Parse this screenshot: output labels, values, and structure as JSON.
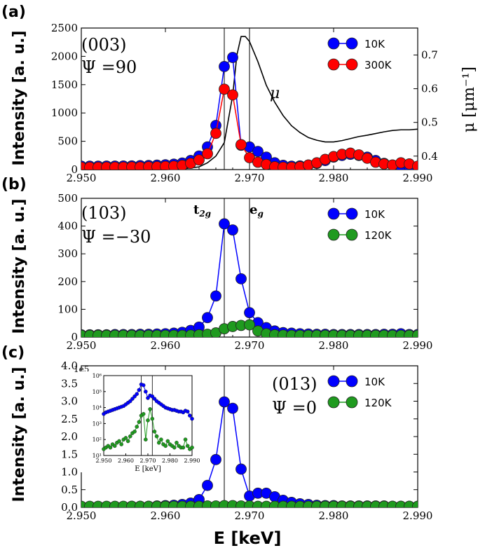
{
  "figure": {
    "xlabel": "E [keV]",
    "inset_xlabel": "E [keV]",
    "t2g": "t2g",
    "eg": "eg"
  },
  "chart_data": [
    {
      "type": "line",
      "panel_label": "(a)",
      "ylabel": "Intensity [a. u.]",
      "ylabel2": "μ [μm⁻¹]",
      "annotation_line1": "(003)",
      "annotation_line2": "Ψ =90",
      "mu_label": "μ",
      "xlim": [
        2.95,
        2.99
      ],
      "ylim": [
        0,
        2500
      ],
      "xticks": [
        "2.950",
        "2.960",
        "2.970",
        "2.980",
        "2.990"
      ],
      "yticks": [
        "0",
        "500",
        "1000",
        "1500",
        "2000",
        "2500"
      ],
      "y2lim": [
        0.36,
        0.78
      ],
      "y2ticks": [
        "0.4",
        "0.5",
        "0.6",
        "0.7"
      ],
      "vlines": [
        2.967,
        2.97
      ],
      "legend_position": "top-right",
      "series": [
        {
          "name": "10K",
          "color": "#0000ff",
          "connect": "peak",
          "x": [
            2.95,
            2.951,
            2.952,
            2.953,
            2.954,
            2.955,
            2.956,
            2.957,
            2.958,
            2.959,
            2.96,
            2.961,
            2.962,
            2.963,
            2.964,
            2.965,
            2.966,
            2.967,
            2.968,
            2.969,
            2.97,
            2.971,
            2.972,
            2.973,
            2.974,
            2.975,
            2.976,
            2.977,
            2.978,
            2.979,
            2.98,
            2.981,
            2.982,
            2.983,
            2.984,
            2.985,
            2.986,
            2.987,
            2.988,
            2.989,
            2.99
          ],
          "y": [
            60,
            60,
            60,
            62,
            62,
            63,
            65,
            70,
            72,
            78,
            85,
            95,
            115,
            160,
            240,
            400,
            780,
            1820,
            1980,
            430,
            400,
            320,
            220,
            120,
            75,
            60,
            65,
            80,
            110,
            160,
            220,
            250,
            270,
            250,
            220,
            160,
            110,
            80,
            60,
            55,
            55
          ]
        },
        {
          "name": "300K",
          "color": "#ff0000",
          "connect": "peak",
          "x": [
            2.95,
            2.951,
            2.952,
            2.953,
            2.954,
            2.955,
            2.956,
            2.957,
            2.958,
            2.959,
            2.96,
            2.961,
            2.962,
            2.963,
            2.964,
            2.965,
            2.966,
            2.967,
            2.968,
            2.969,
            2.97,
            2.971,
            2.972,
            2.973,
            2.974,
            2.975,
            2.976,
            2.977,
            2.978,
            2.979,
            2.98,
            2.981,
            2.982,
            2.983,
            2.984,
            2.985,
            2.986,
            2.987,
            2.988,
            2.989,
            2.99
          ],
          "y": [
            40,
            40,
            40,
            42,
            42,
            42,
            45,
            45,
            48,
            50,
            55,
            60,
            75,
            110,
            170,
            280,
            640,
            1420,
            1320,
            440,
            210,
            130,
            90,
            50,
            40,
            40,
            50,
            80,
            120,
            180,
            230,
            270,
            290,
            260,
            200,
            130,
            100,
            80,
            120,
            100,
            60
          ]
        }
      ],
      "mu_curve": {
        "x": [
          2.95,
          2.956,
          2.96,
          2.962,
          2.964,
          2.965,
          2.966,
          2.967,
          2.968,
          2.9685,
          2.969,
          2.9695,
          2.97,
          2.971,
          2.972,
          2.973,
          2.974,
          2.975,
          2.976,
          2.977,
          2.978,
          2.979,
          2.98,
          2.981,
          2.982,
          2.983,
          2.984,
          2.985,
          2.986,
          2.987,
          2.988,
          2.989,
          2.99
        ],
        "y": [
          0.36,
          0.36,
          0.36,
          0.362,
          0.368,
          0.38,
          0.4,
          0.44,
          0.58,
          0.7,
          0.755,
          0.755,
          0.74,
          0.68,
          0.61,
          0.56,
          0.52,
          0.49,
          0.47,
          0.455,
          0.447,
          0.442,
          0.442,
          0.446,
          0.452,
          0.458,
          0.462,
          0.467,
          0.472,
          0.476,
          0.478,
          0.478,
          0.48
        ]
      }
    },
    {
      "type": "line",
      "panel_label": "(b)",
      "ylabel": "Intensity [a. u.]",
      "annotation_line1": "(103)",
      "annotation_line2": "Ψ =−30",
      "xlim": [
        2.95,
        2.99
      ],
      "ylim": [
        0,
        500
      ],
      "xticks": [
        "2.950",
        "2.960",
        "2.970",
        "2.980",
        "2.990"
      ],
      "yticks": [
        "0",
        "100",
        "200",
        "300",
        "400",
        "500"
      ],
      "vlines": [
        2.967,
        2.97
      ],
      "legend_position": "top-right",
      "series": [
        {
          "name": "10K",
          "color": "#0000ff",
          "connect": "peak",
          "x": [
            2.95,
            2.951,
            2.952,
            2.953,
            2.954,
            2.955,
            2.956,
            2.957,
            2.958,
            2.959,
            2.96,
            2.961,
            2.962,
            2.963,
            2.964,
            2.965,
            2.966,
            2.967,
            2.968,
            2.969,
            2.97,
            2.971,
            2.972,
            2.973,
            2.974,
            2.975,
            2.976,
            2.977,
            2.978,
            2.979,
            2.98,
            2.981,
            2.982,
            2.983,
            2.984,
            2.985,
            2.986,
            2.987,
            2.988,
            2.989,
            2.99
          ],
          "y": [
            8,
            8,
            8,
            8,
            9,
            9,
            9,
            10,
            10,
            11,
            12,
            14,
            17,
            24,
            36,
            70,
            148,
            408,
            386,
            210,
            88,
            52,
            34,
            22,
            16,
            14,
            12,
            11,
            10,
            10,
            9,
            9,
            9,
            9,
            9,
            9,
            10,
            10,
            12,
            9,
            9
          ]
        },
        {
          "name": "120K",
          "color": "#1f9a1f",
          "connect": "none",
          "x": [
            2.95,
            2.951,
            2.952,
            2.953,
            2.954,
            2.955,
            2.956,
            2.957,
            2.958,
            2.959,
            2.96,
            2.961,
            2.962,
            2.963,
            2.964,
            2.965,
            2.966,
            2.967,
            2.968,
            2.969,
            2.97,
            2.971,
            2.972,
            2.973,
            2.974,
            2.975,
            2.976,
            2.977,
            2.978,
            2.979,
            2.98,
            2.981,
            2.982,
            2.983,
            2.984,
            2.985,
            2.986,
            2.987,
            2.988,
            2.989,
            2.99
          ],
          "y": [
            6,
            6,
            6,
            6,
            6,
            6,
            6,
            6,
            6,
            6,
            6,
            6,
            6,
            7,
            8,
            10,
            15,
            30,
            38,
            42,
            44,
            22,
            12,
            8,
            7,
            6,
            6,
            6,
            6,
            6,
            6,
            6,
            6,
            6,
            6,
            6,
            6,
            6,
            6,
            6,
            6
          ]
        }
      ]
    },
    {
      "type": "line",
      "panel_label": "(c)",
      "ylabel": "Intensity [a. u.]",
      "annotation_line1": "(013)",
      "annotation_line2": "Ψ =0",
      "scale_label": "1e5",
      "xlim": [
        2.95,
        2.99
      ],
      "ylim": [
        0,
        4.0
      ],
      "xticks": [
        "2.950",
        "2.960",
        "2.970",
        "2.980",
        "2.990"
      ],
      "yticks": [
        "0.0",
        "0.5",
        "1.0",
        "1.5",
        "2.0",
        "2.5",
        "3.0",
        "3.5",
        "4.0"
      ],
      "vlines": [
        2.967,
        2.97
      ],
      "legend_position": "top-right",
      "series": [
        {
          "name": "10K",
          "color": "#0000ff",
          "connect": "peak",
          "x": [
            2.95,
            2.951,
            2.952,
            2.953,
            2.954,
            2.955,
            2.956,
            2.957,
            2.958,
            2.959,
            2.96,
            2.961,
            2.962,
            2.963,
            2.964,
            2.965,
            2.966,
            2.967,
            2.968,
            2.969,
            2.97,
            2.971,
            2.972,
            2.973,
            2.974,
            2.975,
            2.976,
            2.977,
            2.978,
            2.979,
            2.98,
            2.981,
            2.982,
            2.983,
            2.984,
            2.985,
            2.986,
            2.987,
            2.988,
            2.989,
            2.99
          ],
          "y": [
            0.02,
            0.02,
            0.02,
            0.02,
            0.02,
            0.02,
            0.03,
            0.03,
            0.03,
            0.04,
            0.05,
            0.06,
            0.08,
            0.12,
            0.22,
            0.62,
            1.35,
            2.98,
            2.8,
            1.08,
            0.32,
            0.4,
            0.4,
            0.3,
            0.2,
            0.14,
            0.1,
            0.08,
            0.06,
            0.05,
            0.05,
            0.04,
            0.04,
            0.04,
            0.04,
            0.04,
            0.04,
            0.03,
            0.03,
            0.03,
            0.03
          ]
        },
        {
          "name": "120K",
          "color": "#1f9a1f",
          "connect": "none",
          "x": [
            2.95,
            2.951,
            2.952,
            2.953,
            2.954,
            2.955,
            2.956,
            2.957,
            2.958,
            2.959,
            2.96,
            2.961,
            2.962,
            2.963,
            2.964,
            2.965,
            2.966,
            2.967,
            2.968,
            2.969,
            2.97,
            2.971,
            2.972,
            2.973,
            2.974,
            2.975,
            2.976,
            2.977,
            2.978,
            2.979,
            2.98,
            2.981,
            2.982,
            2.983,
            2.984,
            2.985,
            2.986,
            2.987,
            2.988,
            2.989,
            2.99
          ],
          "y": [
            0.03,
            0.03,
            0.03,
            0.03,
            0.03,
            0.03,
            0.03,
            0.03,
            0.03,
            0.03,
            0.03,
            0.03,
            0.03,
            0.03,
            0.03,
            0.04,
            0.04,
            0.05,
            0.05,
            0.04,
            0.04,
            0.03,
            0.03,
            0.03,
            0.03,
            0.03,
            0.03,
            0.03,
            0.03,
            0.03,
            0.03,
            0.03,
            0.03,
            0.03,
            0.03,
            0.03,
            0.03,
            0.03,
            0.03,
            0.03,
            0.03
          ]
        }
      ],
      "inset": {
        "xlabel": "E [keV]",
        "xlim": [
          2.95,
          2.99
        ],
        "ylim_log10": [
          1,
          6
        ],
        "xticks": [
          "2.950",
          "2.960",
          "2.970",
          "2.980",
          "2.990"
        ],
        "yticks": [
          "10¹",
          "10²",
          "10³",
          "10⁴",
          "10⁵",
          "10⁶"
        ],
        "vlines": [
          2.967,
          2.972
        ],
        "series": [
          {
            "name": "10K",
            "color": "#0000ff",
            "x": [
              2.95,
              2.951,
              2.952,
              2.953,
              2.954,
              2.955,
              2.956,
              2.957,
              2.958,
              2.959,
              2.96,
              2.961,
              2.962,
              2.963,
              2.964,
              2.965,
              2.966,
              2.967,
              2.968,
              2.969,
              2.97,
              2.971,
              2.972,
              2.973,
              2.974,
              2.975,
              2.976,
              2.977,
              2.978,
              2.979,
              2.98,
              2.981,
              2.982,
              2.983,
              2.984,
              2.985,
              2.986,
              2.987,
              2.988,
              2.989,
              2.99
            ],
            "y": [
              3.6,
              3.7,
              3.75,
              3.8,
              3.85,
              3.9,
              3.95,
              4.0,
              4.05,
              4.1,
              4.2,
              4.3,
              4.4,
              4.55,
              4.7,
              4.85,
              5.1,
              5.45,
              5.4,
              5.0,
              4.6,
              4.75,
              4.7,
              4.55,
              4.4,
              4.3,
              4.2,
              4.1,
              4.0,
              3.95,
              3.9,
              3.85,
              3.85,
              3.8,
              3.75,
              3.75,
              3.7,
              3.8,
              3.75,
              3.5,
              3.3
            ]
          },
          {
            "name": "120K",
            "color": "#1f9a1f",
            "x": [
              2.95,
              2.951,
              2.952,
              2.953,
              2.954,
              2.955,
              2.956,
              2.957,
              2.958,
              2.959,
              2.96,
              2.961,
              2.962,
              2.963,
              2.964,
              2.965,
              2.966,
              2.967,
              2.968,
              2.969,
              2.97,
              2.971,
              2.972,
              2.973,
              2.974,
              2.975,
              2.976,
              2.977,
              2.978,
              2.979,
              2.98,
              2.981,
              2.982,
              2.983,
              2.984,
              2.985,
              2.986,
              2.987,
              2.988,
              2.989,
              2.99
            ],
            "y": [
              1.4,
              1.5,
              1.6,
              1.5,
              1.7,
              1.6,
              1.8,
              1.9,
              1.7,
              2.0,
              2.1,
              1.9,
              2.2,
              2.4,
              2.5,
              2.8,
              3.1,
              3.5,
              3.6,
              2.0,
              3.2,
              3.9,
              3.3,
              2.5,
              2.2,
              1.8,
              2.0,
              1.7,
              1.6,
              1.9,
              1.7,
              1.6,
              1.5,
              1.8,
              1.6,
              1.5,
              1.5,
              2.0,
              1.6,
              1.4,
              1.5
            ]
          }
        ]
      }
    }
  ]
}
